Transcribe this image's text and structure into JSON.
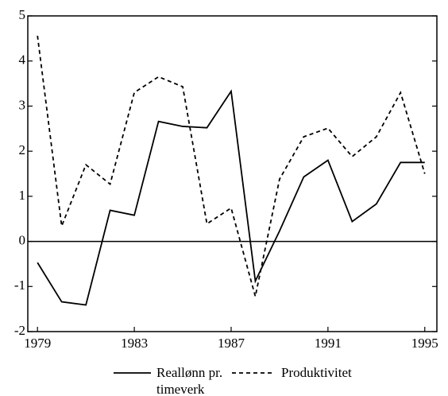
{
  "chart_data": {
    "type": "line",
    "x": [
      1979,
      1980,
      1981,
      1982,
      1983,
      1984,
      1985,
      1986,
      1987,
      1988,
      1989,
      1990,
      1991,
      1992,
      1993,
      1994,
      1995
    ],
    "series": [
      {
        "name": "Reallønn pr. timeverk",
        "color": "#000000",
        "dash": "solid",
        "values": [
          -0.47,
          -1.34,
          -1.41,
          0.69,
          0.58,
          2.66,
          2.55,
          2.52,
          3.33,
          -0.88,
          0.23,
          1.43,
          1.8,
          0.44,
          0.83,
          1.75,
          1.75
        ]
      },
      {
        "name": "Produktivitet",
        "color": "#000000",
        "dash": "dashed",
        "values": [
          4.56,
          0.34,
          1.7,
          1.27,
          3.3,
          3.65,
          3.43,
          0.39,
          0.74,
          -1.22,
          1.38,
          2.32,
          2.51,
          1.88,
          2.32,
          3.3,
          1.5
        ]
      }
    ],
    "xlim": [
      1978.6,
      1995.5
    ],
    "xticks": [
      1979,
      1983,
      1987,
      1991,
      1995
    ],
    "ylim": [
      -2,
      5
    ],
    "yticks": [
      -2,
      -1,
      0,
      1,
      2,
      3,
      4,
      5
    ],
    "zero_line": true
  }
}
